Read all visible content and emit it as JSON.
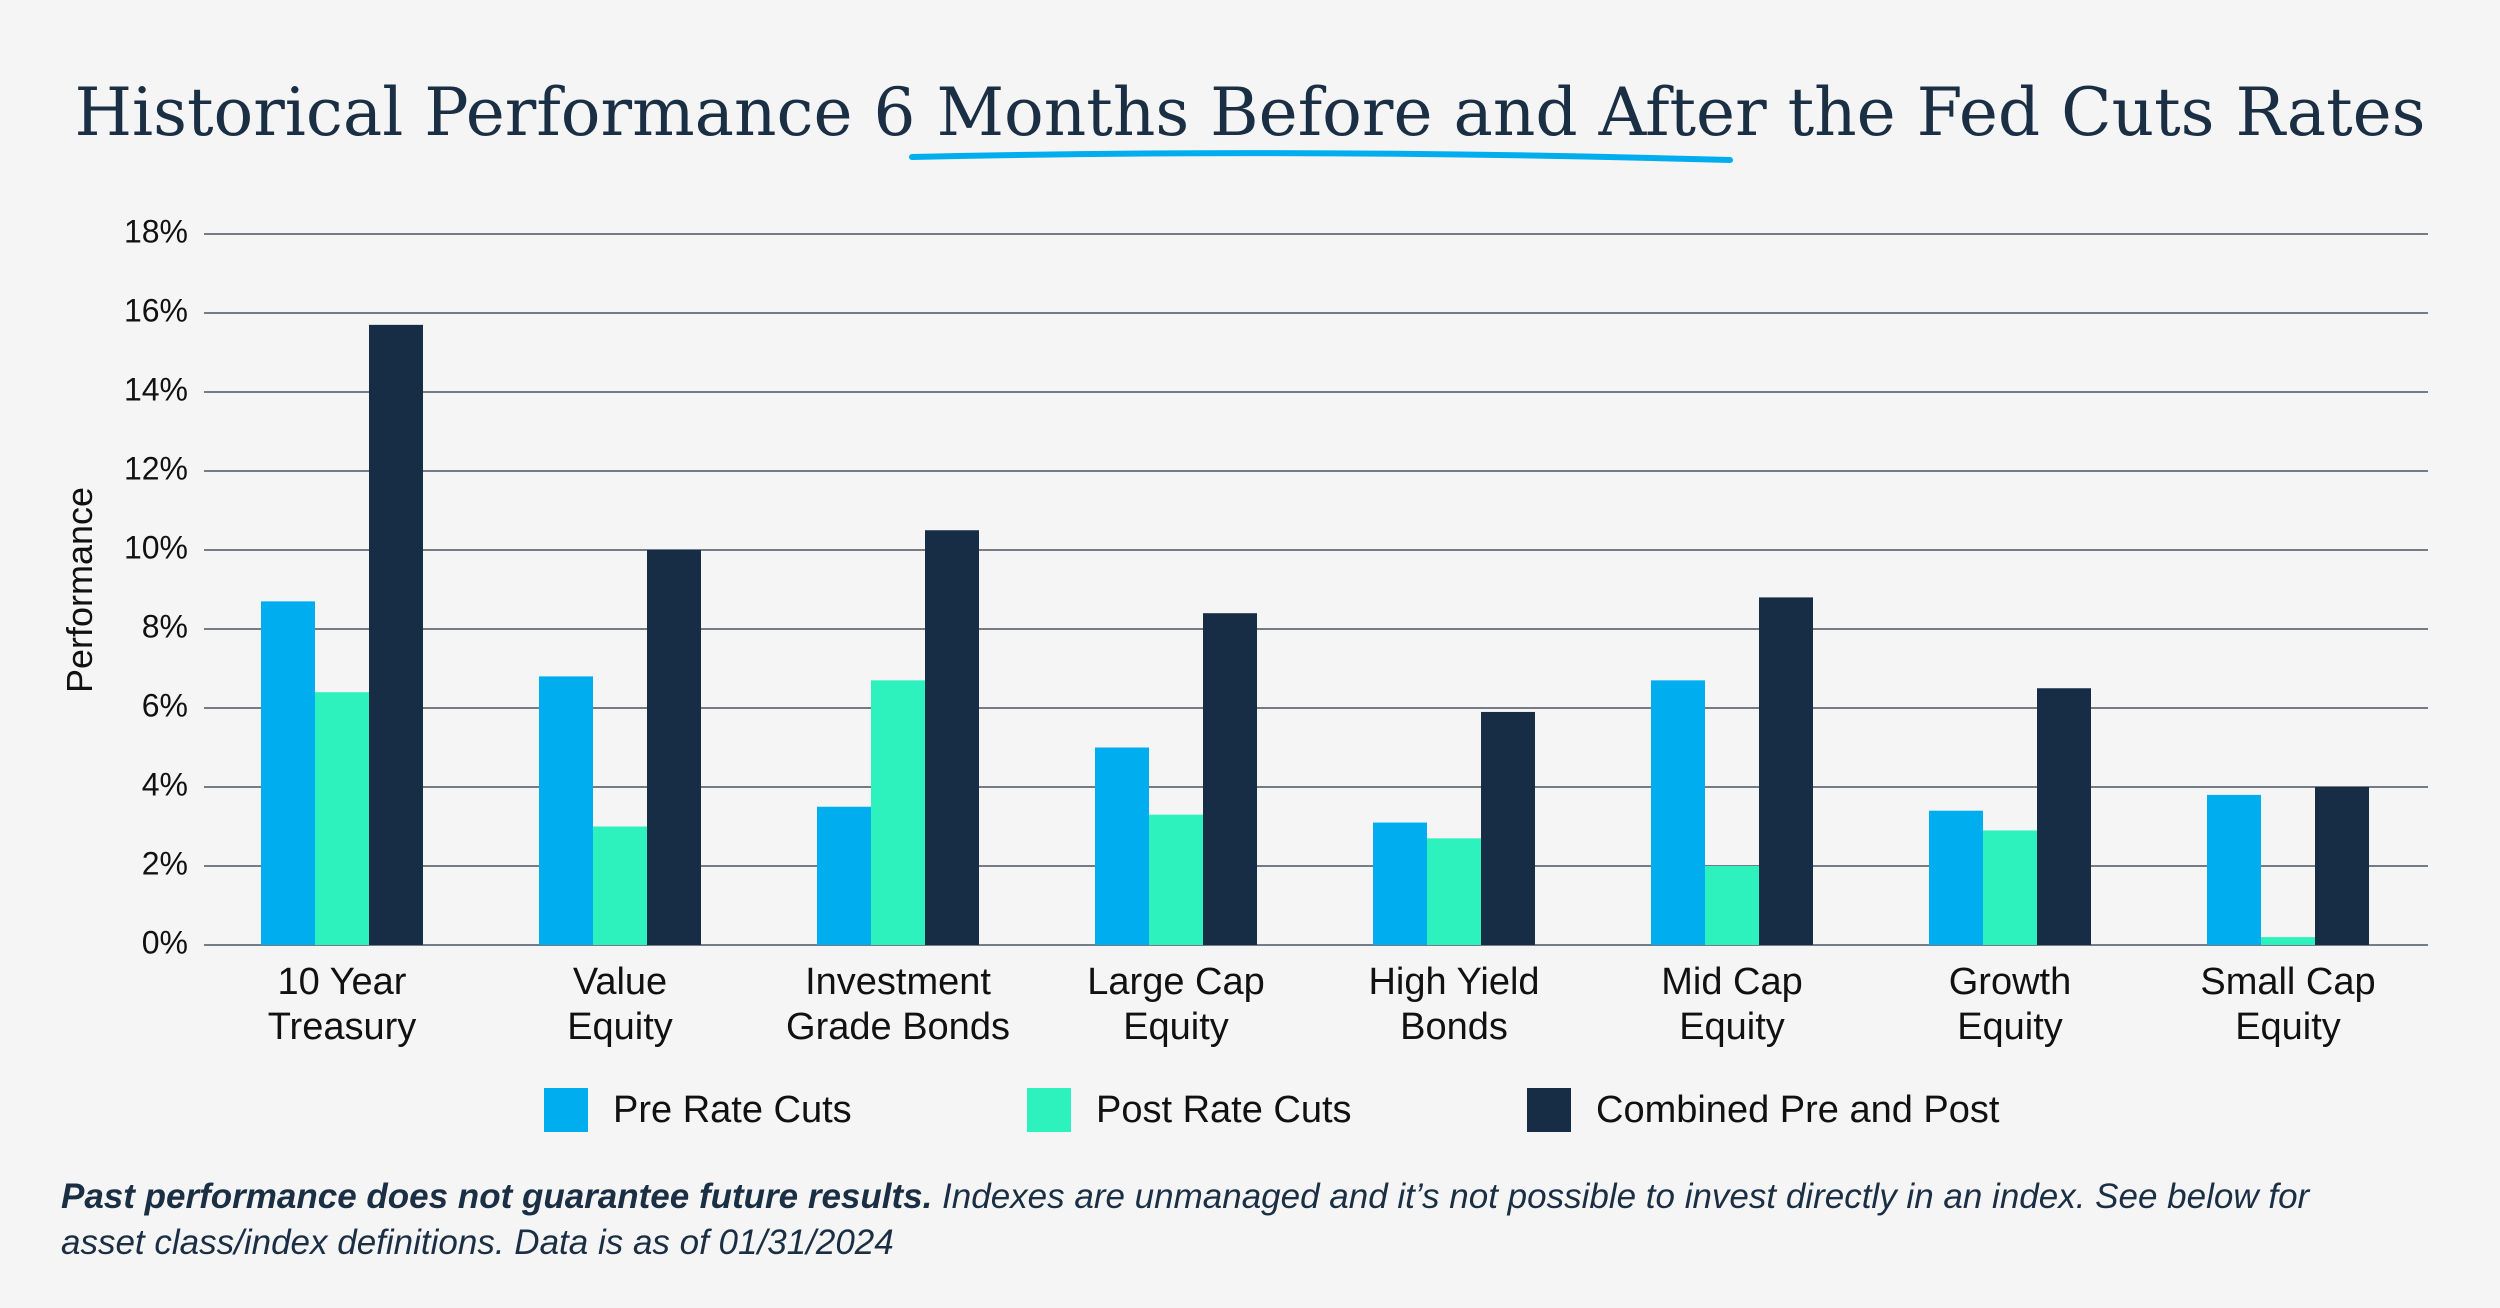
{
  "chart_data": {
    "type": "bar",
    "title": "Historical Performance 6 Months Before and After the Fed Cuts Rates",
    "y_label": "Performance",
    "categories": [
      "10 Year\nTreasury",
      "Value\nEquity",
      "Investment\nGrade Bonds",
      "Large Cap\nEquity",
      "High Yield\nBonds",
      "Mid Cap\nEquity",
      "Growth\nEquity",
      "Small Cap\nEquity"
    ],
    "series": [
      {
        "name": "Pre Rate Cuts",
        "color": "#00aeef",
        "values": [
          8.7,
          6.8,
          3.5,
          5.0,
          3.1,
          6.7,
          3.4,
          3.8
        ]
      },
      {
        "name": "Post Rate Cuts",
        "color": "#2ef2be",
        "values": [
          6.4,
          3.0,
          6.7,
          3.3,
          2.7,
          2.0,
          2.9,
          0.2
        ]
      },
      {
        "name": "Combined Pre and Post",
        "color": "#172d45",
        "values": [
          15.7,
          10.0,
          10.5,
          8.4,
          5.9,
          8.8,
          6.5,
          4.0
        ]
      }
    ],
    "ylim": [
      0,
      18
    ],
    "yticks": [
      {
        "value": 0,
        "label": "0%"
      },
      {
        "value": 2,
        "label": "2%"
      },
      {
        "value": 4,
        "label": "4%"
      },
      {
        "value": 6,
        "label": "6%"
      },
      {
        "value": 8,
        "label": "8%"
      },
      {
        "value": 10,
        "label": "10%"
      },
      {
        "value": 12,
        "label": "12%"
      },
      {
        "value": 14,
        "label": "14%"
      },
      {
        "value": 16,
        "label": "16%"
      },
      {
        "value": 18,
        "label": "18%"
      }
    ],
    "grid": true,
    "legend": "bottom",
    "footnote": {
      "bold": "Past performance does not guarantee future results.",
      "text": " Indexes are unmanaged and it’s not possible to invest directly in an index. See below for",
      "text2": "asset class/index definitions. Data is as of 01/31/2024"
    }
  }
}
